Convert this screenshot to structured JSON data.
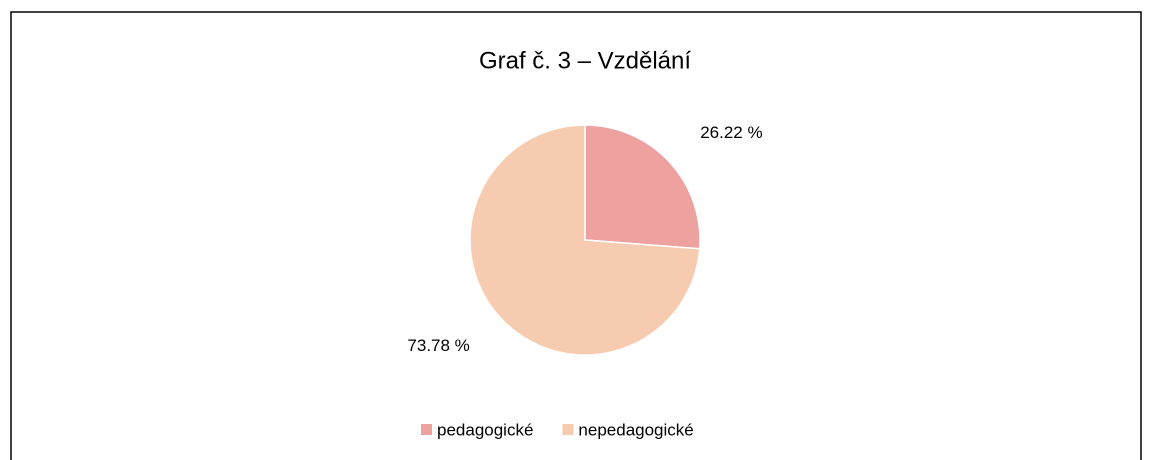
{
  "chart_data": {
    "type": "pie",
    "title": "Graf č. 3 – Vzdělání",
    "categories": [
      "pedagogické",
      "nepedagogické"
    ],
    "values": [
      26.22,
      73.78
    ],
    "value_labels": [
      "26.22 %",
      "73.78 %"
    ],
    "colors": [
      "#eea2a0",
      "#f7cbb0"
    ],
    "legend": "bottom"
  }
}
